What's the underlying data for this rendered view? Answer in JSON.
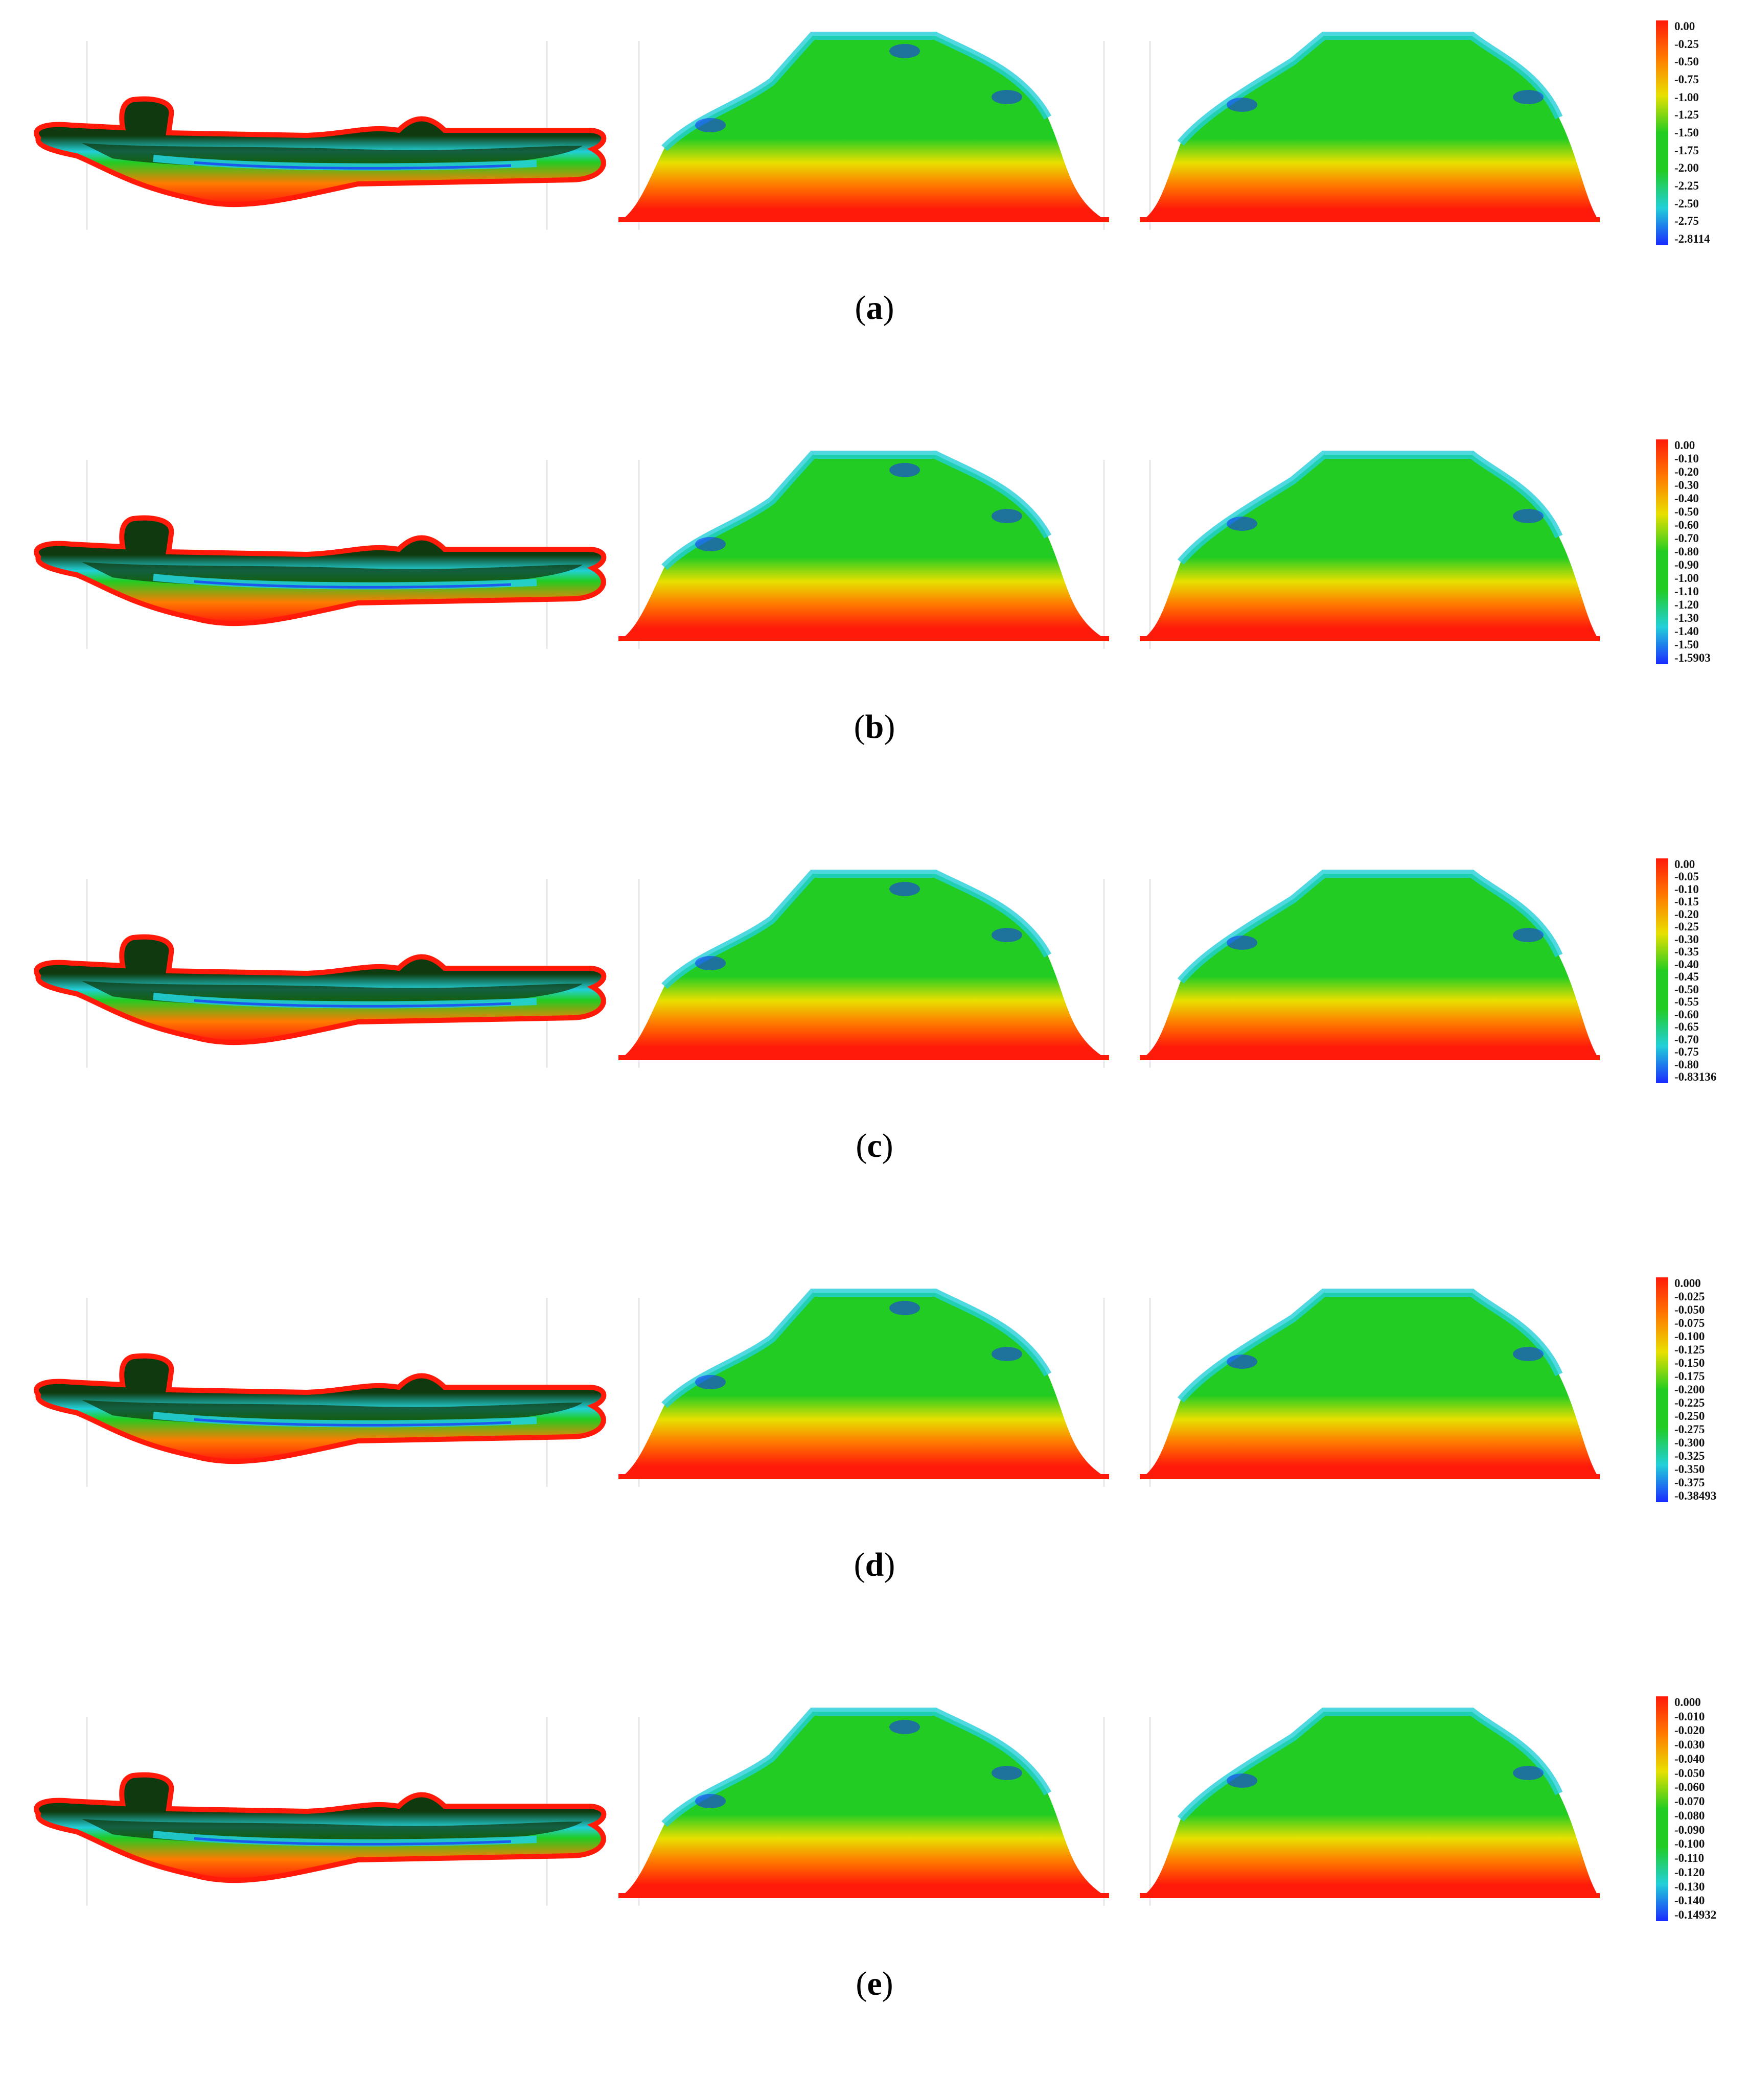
{
  "colors": {
    "red": "#ff1a0a",
    "orange": "#ff7a00",
    "yellow": "#e8e000",
    "green": "#22cc22",
    "cyan": "#22d0d8",
    "blue": "#1a2aff",
    "dark_green": "#0f3a0f"
  },
  "panels": [
    {
      "label": "a",
      "legend": [
        "0.00",
        "-0.25",
        "-0.50",
        "-0.75",
        "-1.00",
        "-1.25",
        "-1.50",
        "-1.75",
        "-2.00",
        "-2.25",
        "-2.50",
        "-2.75",
        "-2.8114"
      ]
    },
    {
      "label": "b",
      "legend": [
        "0.00",
        "-0.10",
        "-0.20",
        "-0.30",
        "-0.40",
        "-0.50",
        "-0.60",
        "-0.70",
        "-0.80",
        "-0.90",
        "-1.00",
        "-1.10",
        "-1.20",
        "-1.30",
        "-1.40",
        "-1.50",
        "-1.5903"
      ]
    },
    {
      "label": "c",
      "legend": [
        "0.00",
        "-0.05",
        "-0.10",
        "-0.15",
        "-0.20",
        "-0.25",
        "-0.30",
        "-0.35",
        "-0.40",
        "-0.45",
        "-0.50",
        "-0.55",
        "-0.60",
        "-0.65",
        "-0.70",
        "-0.75",
        "-0.80",
        "-0.83136"
      ]
    },
    {
      "label": "d",
      "legend": [
        "0.000",
        "-0.025",
        "-0.050",
        "-0.075",
        "-0.100",
        "-0.125",
        "-0.150",
        "-0.175",
        "-0.200",
        "-0.225",
        "-0.250",
        "-0.275",
        "-0.300",
        "-0.325",
        "-0.350",
        "-0.375",
        "-0.38493"
      ]
    },
    {
      "label": "e",
      "legend": [
        "0.000",
        "-0.010",
        "-0.020",
        "-0.030",
        "-0.040",
        "-0.050",
        "-0.060",
        "-0.070",
        "-0.080",
        "-0.090",
        "-0.100",
        "-0.110",
        "-0.120",
        "-0.130",
        "-0.140",
        "-0.14932"
      ]
    }
  ]
}
